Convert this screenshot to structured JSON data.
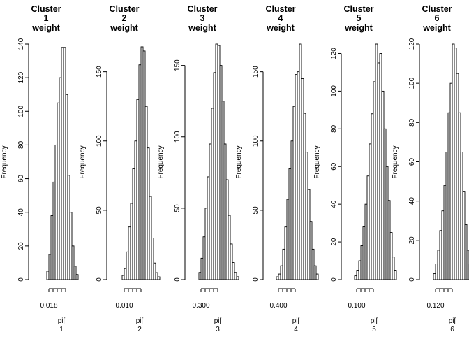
{
  "chart_data": [
    {
      "type": "bar",
      "title_lines": [
        "Cluster",
        "1",
        "weight"
      ],
      "xlabel_lines": [
        "pi[",
        "1"
      ],
      "ylabel": "Frequency",
      "ylim": [
        0,
        140
      ],
      "yticks": [
        0,
        20,
        40,
        60,
        80,
        100,
        120,
        140
      ],
      "xtick_label": "0.018",
      "values": [
        5,
        15,
        38,
        58,
        80,
        105,
        120,
        138,
        138,
        110,
        62,
        40,
        20,
        8,
        3
      ]
    },
    {
      "type": "bar",
      "title_lines": [
        "Cluster",
        "2",
        "weight"
      ],
      "xlabel_lines": [
        "pi[",
        "2"
      ],
      "ylabel": "Frequency",
      "ylim": [
        0,
        170
      ],
      "yticks": [
        0,
        50,
        100,
        150
      ],
      "xtick_label": "0.010",
      "values": [
        3,
        8,
        20,
        38,
        55,
        80,
        100,
        130,
        155,
        168,
        165,
        125,
        95,
        60,
        30,
        12,
        5,
        2
      ]
    },
    {
      "type": "bar",
      "title_lines": [
        "Cluster",
        "3",
        "weight"
      ],
      "xlabel_lines": [
        "pi[",
        "3"
      ],
      "ylabel": "Frequency",
      "ylim": [
        0,
        165
      ],
      "yticks": [
        0,
        50,
        100,
        150
      ],
      "xtick_label": "0.300",
      "values": [
        5,
        15,
        30,
        50,
        72,
        95,
        120,
        145,
        165,
        164,
        150,
        125,
        95,
        70,
        45,
        25,
        12,
        5,
        2
      ]
    },
    {
      "type": "bar",
      "title_lines": [
        "Cluster",
        "4",
        "weight"
      ],
      "xlabel_lines": [
        "pi[",
        "4"
      ],
      "ylabel": "Frequency",
      "ylim": [
        0,
        170
      ],
      "yticks": [
        0,
        50,
        100,
        150
      ],
      "xtick_label": "0.400",
      "values": [
        2,
        4,
        10,
        22,
        38,
        58,
        80,
        100,
        125,
        148,
        150,
        170,
        145,
        120,
        92,
        65,
        42,
        22,
        10,
        4
      ]
    },
    {
      "type": "bar",
      "title_lines": [
        "Cluster",
        "5",
        "weight"
      ],
      "xlabel_lines": [
        "pi[",
        "5"
      ],
      "ylabel": "Frequency",
      "ylim": [
        0,
        125
      ],
      "yticks": [
        0,
        20,
        40,
        60,
        80,
        100,
        120
      ],
      "xtick_label": "0.100",
      "values": [
        2,
        5,
        10,
        18,
        28,
        40,
        55,
        72,
        88,
        105,
        125,
        115,
        120,
        100,
        80,
        60,
        42,
        25,
        12,
        5
      ]
    },
    {
      "type": "bar",
      "title_lines": [
        "Cluster",
        "6",
        "weight"
      ],
      "xlabel_lines": [
        "pi[",
        "6"
      ],
      "ylabel": "Frequency",
      "ylim": [
        0,
        120
      ],
      "yticks": [
        0,
        20,
        40,
        60,
        80,
        100,
        120
      ],
      "xtick_label": "0.120",
      "values": [
        3,
        8,
        15,
        25,
        35,
        48,
        65,
        85,
        100,
        120,
        118,
        105,
        85,
        65,
        45,
        28,
        15,
        8,
        3
      ]
    }
  ]
}
